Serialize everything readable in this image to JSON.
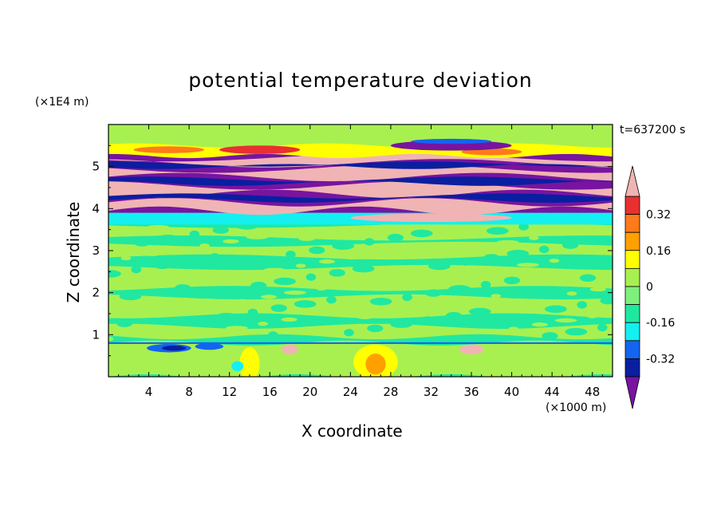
{
  "chart_data": {
    "type": "heatmap",
    "title": "potential temperature deviation",
    "xlabel": "X coordinate",
    "ylabel": "Z coordinate",
    "x_unit": "(×1000 m)",
    "y_unit": "(×1E4 m)",
    "time_label": "t=637200 s",
    "xlim": [
      0,
      50
    ],
    "ylim": [
      0,
      6
    ],
    "x_ticks": [
      4,
      8,
      12,
      16,
      20,
      24,
      28,
      32,
      36,
      40,
      44,
      48
    ],
    "y_ticks": [
      1,
      2,
      3,
      4,
      5
    ],
    "colorbar": {
      "levels": [
        -0.4,
        -0.32,
        -0.24,
        -0.16,
        -0.08,
        0,
        0.08,
        0.16,
        0.24,
        0.32,
        0.4
      ],
      "tick_labels": [
        "0.32",
        "0.16",
        "0",
        "-0.16",
        "-0.32"
      ],
      "tick_values": [
        0.32,
        0.16,
        0,
        -0.16,
        -0.32
      ],
      "colors": [
        "#e83030",
        "#ff7a1a",
        "#ffa000",
        "#ffff00",
        "#a8f050",
        "#7ef07e",
        "#20e8a0",
        "#14f0f0",
        "#1464f0",
        "#0a1ea0",
        "#3c149c"
      ],
      "extend_top_color": "#f0b4b4",
      "extend_bottom_color": "#7814a0"
    },
    "bands": [
      {
        "z": [
          0.0,
          0.8
        ],
        "level": "mostly 0 to 0.08, with yellow/orange patches near x=25-28 and light pink patches near x=18 and x=36"
      },
      {
        "z": [
          0.8,
          3.6
        ],
        "level": "alternating 0 to 0.08 (green) and -0.08 to 0 (teal green)"
      },
      {
        "z": [
          3.6,
          3.9
        ],
        "level": "-0.16 to -0.08 (cyan)"
      },
      {
        "z": [
          3.9,
          5.3
        ],
        "level": "alternating >0.4 (pink) and <-0.4 (purple) layers"
      },
      {
        "z": [
          5.3,
          5.6
        ],
        "level": "0.24 to 0.4 (yellow/orange/red) patches"
      },
      {
        "z": [
          5.6,
          6.0
        ],
        "level": "0 to 0.08 (green)"
      }
    ]
  }
}
